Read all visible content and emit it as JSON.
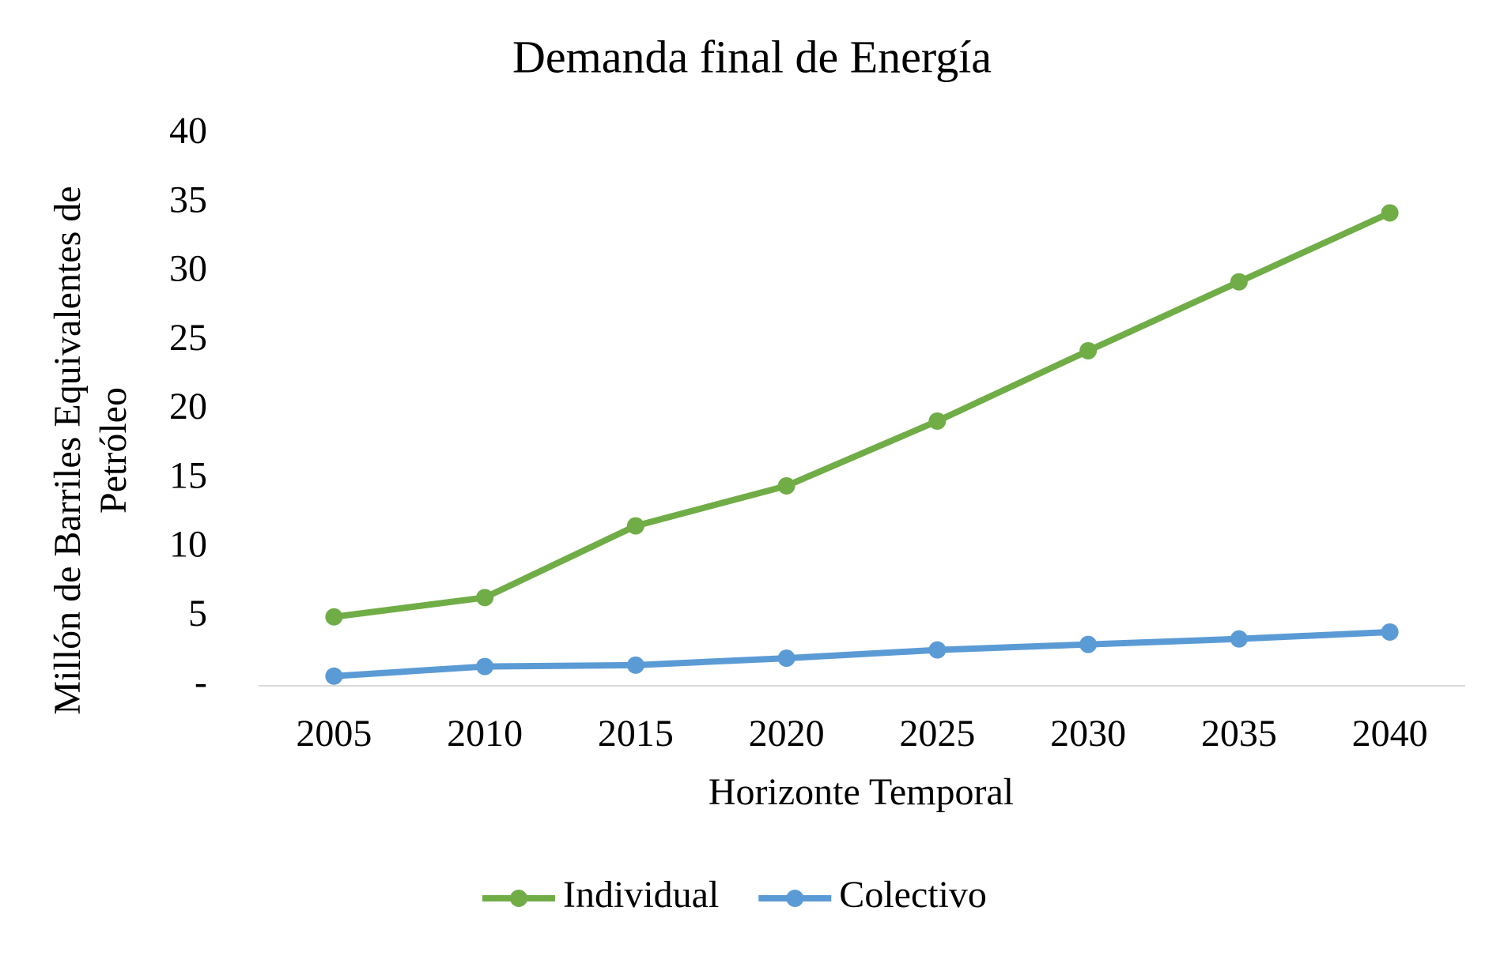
{
  "chart_data": {
    "type": "line",
    "title": "Demanda final de Energía",
    "x_label": "Horizonte Temporal",
    "y_label": [
      "Millón de Barriles Equivalentes de",
      "Petróleo"
    ],
    "categories": [
      "2005",
      "2010",
      "2015",
      "2020",
      "2025",
      "2030",
      "2035",
      "2040"
    ],
    "series": [
      {
        "name": "Individual",
        "color": "#70ad47",
        "values": [
          5.0,
          6.4,
          11.6,
          14.5,
          19.2,
          24.3,
          29.3,
          34.3
        ]
      },
      {
        "name": "Colectivo",
        "color": "#5b9bd5",
        "values": [
          0.7,
          1.4,
          1.5,
          2.0,
          2.6,
          3.0,
          3.4,
          3.9
        ]
      }
    ],
    "ylim": [
      0,
      40
    ],
    "yticks": [
      {
        "value": 0,
        "label": "-"
      },
      5,
      10,
      15,
      20,
      25,
      30,
      35,
      40
    ],
    "grid": false,
    "legend": "bottom"
  }
}
